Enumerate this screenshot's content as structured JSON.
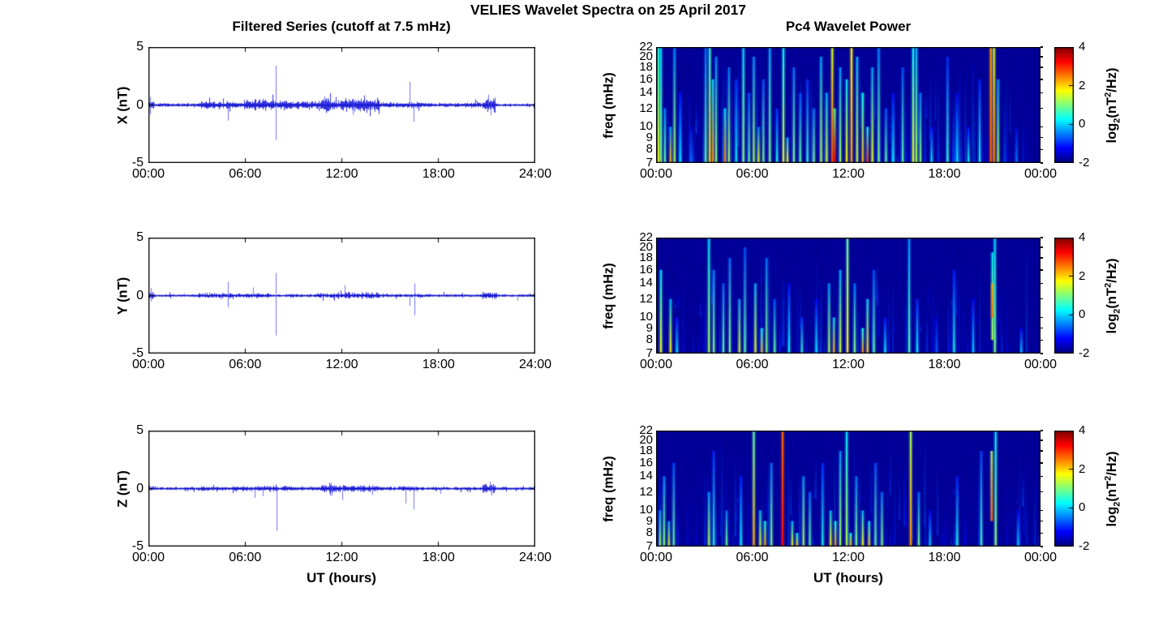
{
  "figure": {
    "title": "VELIES Wavelet Spectra on 25 April 2017",
    "left_title": "Filtered Series (cutoff at 7.5 mHz)",
    "right_title": "Pc4 Wavelet Power",
    "xlabel": "UT (hours)"
  },
  "colors": {
    "series_line": "#0000d8",
    "series_spike": "#5a5aff",
    "heatmap_background": "#000099",
    "axis": "#000000",
    "text": "#000000"
  },
  "colorbar": {
    "min_log2": -2,
    "max_log2": 4,
    "ticks": [
      4,
      2,
      0,
      -2
    ],
    "label_parts": {
      "pre": "log",
      "sub": "2",
      "mid": "(nT",
      "sup": "2",
      "post": "/Hz)"
    }
  },
  "chart_data": [
    {
      "id": "x_series",
      "type": "line",
      "component": "X",
      "ylabel": "X (nT)",
      "ylim": [
        -5,
        5
      ],
      "yticks": [
        5,
        0,
        -5
      ],
      "xticks_hours": [
        0,
        6,
        12,
        18,
        24
      ],
      "xtick_labels": [
        "00:00",
        "06:00",
        "12:00",
        "18:00",
        "24:00"
      ],
      "noise_envelope_nT": [
        [
          0,
          0.35,
          0.3
        ],
        [
          0.35,
          2.8,
          0.1
        ],
        [
          2.8,
          3.1,
          0.14
        ],
        [
          3.1,
          5.1,
          0.22
        ],
        [
          5.1,
          5.9,
          0.16
        ],
        [
          5.9,
          7.7,
          0.32
        ],
        [
          7.7,
          8.5,
          0.26
        ],
        [
          8.5,
          10.7,
          0.24
        ],
        [
          10.7,
          11.5,
          0.45
        ],
        [
          11.5,
          11.9,
          0.28
        ],
        [
          11.9,
          14.3,
          0.42
        ],
        [
          14.3,
          15.7,
          0.16
        ],
        [
          15.7,
          16.8,
          0.22
        ],
        [
          16.8,
          20.7,
          0.13
        ],
        [
          20.7,
          21.5,
          0.4
        ],
        [
          21.5,
          24,
          0.09
        ]
      ],
      "spikes_nT": [
        [
          7.9,
          3.4
        ],
        [
          7.9,
          -3.0
        ],
        [
          4.95,
          -1.35
        ],
        [
          16.2,
          2.0
        ],
        [
          16.45,
          -1.45
        ],
        [
          0.1,
          0.7
        ],
        [
          0.1,
          -0.8
        ],
        [
          10.9,
          0.75
        ],
        [
          12.7,
          -0.85
        ],
        [
          21.1,
          0.9
        ],
        [
          21.25,
          -0.9
        ]
      ]
    },
    {
      "id": "x_wavelet",
      "type": "heatmap",
      "component": "X",
      "ylabel": "freq (mHz)",
      "yscale": "log",
      "freq_range_mHz": [
        7,
        22
      ],
      "yticks": [
        22,
        20,
        18,
        16,
        14,
        12,
        10,
        9,
        8,
        7
      ],
      "xticks_hours": [
        0,
        6,
        12,
        18,
        24
      ],
      "xtick_labels": [
        "00:00",
        "06:00",
        "12:00",
        "18:00",
        "00:00"
      ],
      "clim_log2": [
        -2,
        4
      ],
      "texture": {
        "count": 170,
        "power_min": -1.7,
        "power_max": -0.5
      },
      "streaks": [
        [
          0.15,
          1.8,
          22,
          0.4
        ],
        [
          0.3,
          1.0,
          22,
          0.0
        ],
        [
          0.55,
          0.8,
          12,
          -0.5
        ],
        [
          0.9,
          2.2,
          10,
          -0.3
        ],
        [
          1.15,
          1.2,
          22,
          -0.5
        ],
        [
          1.5,
          0.2,
          14,
          -1.2
        ],
        [
          2.2,
          -0.5,
          10,
          -1.5
        ],
        [
          3.1,
          0.8,
          22,
          -0.6
        ],
        [
          3.35,
          2.0,
          22,
          0.4
        ],
        [
          3.55,
          2.4,
          16,
          0.0
        ],
        [
          3.75,
          1.0,
          20,
          -0.5
        ],
        [
          4.3,
          2.5,
          12,
          0.0
        ],
        [
          4.55,
          1.2,
          18,
          -0.6
        ],
        [
          5.0,
          0.3,
          16,
          -1.0
        ],
        [
          5.45,
          1.1,
          22,
          0.0
        ],
        [
          5.8,
          0.8,
          14,
          -0.8
        ],
        [
          6.1,
          1.2,
          20,
          -0.4
        ],
        [
          6.4,
          1.6,
          10,
          -0.5
        ],
        [
          6.7,
          0.9,
          16,
          -0.8
        ],
        [
          7.1,
          1.0,
          22,
          -0.3
        ],
        [
          7.55,
          0.4,
          12,
          -1.0
        ],
        [
          7.95,
          1.5,
          22,
          0.2
        ],
        [
          8.2,
          1.8,
          9,
          -0.2
        ],
        [
          8.6,
          1.0,
          18,
          -0.6
        ],
        [
          9.0,
          0.8,
          14,
          -0.8
        ],
        [
          9.45,
          0.5,
          16,
          -1.0
        ],
        [
          9.85,
          1.0,
          12,
          -0.6
        ],
        [
          10.3,
          1.3,
          20,
          -0.3
        ],
        [
          10.65,
          1.5,
          14,
          -0.2
        ],
        [
          11.0,
          2.8,
          22,
          1.5
        ],
        [
          11.15,
          3.3,
          12,
          0.8
        ],
        [
          11.5,
          1.2,
          18,
          -0.4
        ],
        [
          11.9,
          1.8,
          16,
          0.0
        ],
        [
          12.2,
          2.3,
          22,
          1.8
        ],
        [
          12.55,
          1.4,
          20,
          -0.2
        ],
        [
          12.9,
          2.2,
          14,
          0.3
        ],
        [
          13.2,
          2.9,
          10,
          0.3
        ],
        [
          13.5,
          1.6,
          18,
          -0.3
        ],
        [
          13.9,
          1.0,
          22,
          -0.5
        ],
        [
          14.35,
          0.8,
          12,
          -0.8
        ],
        [
          14.8,
          0.3,
          14,
          -1.2
        ],
        [
          15.4,
          0.8,
          18,
          -0.8
        ],
        [
          16.05,
          1.6,
          22,
          0.2
        ],
        [
          16.25,
          1.2,
          22,
          -0.2
        ],
        [
          16.5,
          1.0,
          14,
          -0.6
        ],
        [
          17.2,
          0.2,
          10,
          -1.2
        ],
        [
          18.2,
          0.5,
          20,
          -1.0
        ],
        [
          18.8,
          0.2,
          14,
          -1.3
        ],
        [
          19.5,
          0.3,
          10,
          -1.2
        ],
        [
          20.2,
          0.3,
          16,
          -1.1
        ],
        [
          20.9,
          2.7,
          22,
          2.3
        ],
        [
          21.1,
          2.5,
          22,
          1.4
        ],
        [
          21.35,
          1.2,
          16,
          -0.4
        ],
        [
          22.5,
          -0.5,
          10,
          -1.5
        ]
      ]
    },
    {
      "id": "y_series",
      "type": "line",
      "component": "Y",
      "ylabel": "Y (nT)",
      "ylim": [
        -5,
        5
      ],
      "yticks": [
        5,
        0,
        -5
      ],
      "xticks_hours": [
        0,
        6,
        12,
        18,
        24
      ],
      "xtick_labels": [
        "00:00",
        "06:00",
        "12:00",
        "18:00",
        "24:00"
      ],
      "noise_envelope_nT": [
        [
          0,
          0.4,
          0.22
        ],
        [
          0.4,
          3.1,
          0.08
        ],
        [
          3.1,
          5.2,
          0.16
        ],
        [
          5.2,
          7.6,
          0.14
        ],
        [
          7.6,
          10.4,
          0.09
        ],
        [
          10.4,
          11.4,
          0.14
        ],
        [
          11.4,
          14.2,
          0.18
        ],
        [
          14.2,
          16.8,
          0.1
        ],
        [
          16.8,
          20.7,
          0.09
        ],
        [
          20.7,
          21.6,
          0.2
        ],
        [
          21.6,
          24,
          0.08
        ]
      ],
      "spikes_nT": [
        [
          7.9,
          1.95
        ],
        [
          7.9,
          -3.45
        ],
        [
          4.95,
          1.2
        ],
        [
          4.95,
          -1.0
        ],
        [
          6.5,
          0.7
        ],
        [
          12.2,
          0.9
        ],
        [
          16.2,
          -0.9
        ],
        [
          16.5,
          -1.7
        ],
        [
          16.5,
          1.05
        ],
        [
          0.15,
          0.65
        ],
        [
          0.15,
          -0.5
        ],
        [
          22.9,
          -0.45
        ]
      ]
    },
    {
      "id": "y_wavelet",
      "type": "heatmap",
      "component": "Y",
      "ylabel": "freq (mHz)",
      "yscale": "log",
      "freq_range_mHz": [
        7,
        22
      ],
      "yticks": [
        22,
        20,
        18,
        16,
        14,
        12,
        10,
        9,
        8,
        7
      ],
      "xticks_hours": [
        0,
        6,
        12,
        18,
        24
      ],
      "xtick_labels": [
        "00:00",
        "06:00",
        "12:00",
        "18:00",
        "00:00"
      ],
      "clim_log2": [
        -2,
        4
      ],
      "texture": {
        "count": 120,
        "power_min": -1.7,
        "power_max": -0.6
      },
      "streaks": [
        [
          0.3,
          1.6,
          16,
          0.0
        ],
        [
          0.9,
          1.8,
          12,
          -0.2
        ],
        [
          1.3,
          0.2,
          10,
          -1.2
        ],
        [
          3.3,
          1.2,
          22,
          0.0
        ],
        [
          3.6,
          1.0,
          16,
          -0.5
        ],
        [
          4.2,
          0.8,
          14,
          -0.7
        ],
        [
          4.6,
          1.0,
          18,
          -0.6
        ],
        [
          5.2,
          1.5,
          12,
          -0.3
        ],
        [
          5.55,
          0.8,
          20,
          -0.8
        ],
        [
          6.2,
          1.6,
          14,
          -0.2
        ],
        [
          6.6,
          2.2,
          9,
          0.2
        ],
        [
          6.9,
          1.0,
          18,
          -0.6
        ],
        [
          7.4,
          0.8,
          12,
          -0.8
        ],
        [
          8.3,
          0.3,
          14,
          -1.2
        ],
        [
          9.1,
          0.5,
          10,
          -1.0
        ],
        [
          10.0,
          0.2,
          12,
          -1.3
        ],
        [
          10.8,
          1.2,
          14,
          -0.4
        ],
        [
          11.1,
          2.2,
          10,
          0.0
        ],
        [
          11.5,
          1.5,
          16,
          -0.3
        ],
        [
          11.95,
          1.8,
          22,
          0.8
        ],
        [
          12.4,
          1.0,
          14,
          -0.6
        ],
        [
          12.9,
          2.4,
          9,
          0.3
        ],
        [
          13.2,
          2.0,
          12,
          0.0
        ],
        [
          13.6,
          0.8,
          16,
          -0.8
        ],
        [
          14.3,
          0.3,
          10,
          -1.2
        ],
        [
          15.8,
          0.7,
          22,
          -0.4
        ],
        [
          16.3,
          0.3,
          12,
          -1.1
        ],
        [
          17.5,
          -0.7,
          10,
          -1.5
        ],
        [
          18.6,
          0.3,
          16,
          -1.1
        ],
        [
          19.8,
          0.0,
          12,
          -1.3
        ],
        [
          21.0,
          1.3,
          19,
          0.1,
          8
        ],
        [
          21.0,
          2.6,
          14,
          2.2,
          10
        ],
        [
          21.15,
          1.0,
          22,
          0.0
        ],
        [
          22.8,
          0.0,
          9,
          -1.3
        ]
      ]
    },
    {
      "id": "z_series",
      "type": "line",
      "component": "Z",
      "ylabel": "Z (nT)",
      "ylim": [
        -5,
        5
      ],
      "yticks": [
        5,
        0,
        -5
      ],
      "xticks_hours": [
        0,
        6,
        12,
        18,
        24
      ],
      "xtick_labels": [
        "00:00",
        "06:00",
        "12:00",
        "18:00",
        "24:00"
      ],
      "noise_envelope_nT": [
        [
          0,
          0.4,
          0.18
        ],
        [
          0.4,
          3.1,
          0.09
        ],
        [
          3.1,
          5.3,
          0.13
        ],
        [
          5.3,
          7.9,
          0.16
        ],
        [
          7.9,
          10.7,
          0.13
        ],
        [
          10.7,
          11.6,
          0.24
        ],
        [
          11.6,
          14.3,
          0.2
        ],
        [
          14.3,
          15.7,
          0.11
        ],
        [
          15.7,
          16.8,
          0.14
        ],
        [
          16.8,
          20.7,
          0.1
        ],
        [
          20.7,
          21.5,
          0.26
        ],
        [
          21.5,
          24,
          0.09
        ]
      ],
      "spikes_nT": [
        [
          7.95,
          -3.65
        ],
        [
          6.6,
          -0.8
        ],
        [
          7.1,
          -0.65
        ],
        [
          12.0,
          -1.0
        ],
        [
          15.95,
          -1.3
        ],
        [
          16.45,
          -1.8
        ],
        [
          11.3,
          0.5
        ],
        [
          11.35,
          -0.6
        ],
        [
          13.9,
          -0.55
        ],
        [
          18.1,
          -0.45
        ],
        [
          21.2,
          0.6
        ],
        [
          21.3,
          -0.6
        ]
      ]
    },
    {
      "id": "z_wavelet",
      "type": "heatmap",
      "component": "Z",
      "ylabel": "freq (mHz)",
      "yscale": "log",
      "freq_range_mHz": [
        7,
        22
      ],
      "yticks": [
        22,
        20,
        18,
        16,
        14,
        12,
        10,
        9,
        8,
        7
      ],
      "xticks_hours": [
        0,
        6,
        12,
        18,
        24
      ],
      "xtick_labels": [
        "00:00",
        "06:00",
        "12:00",
        "18:00",
        "00:00"
      ],
      "clim_log2": [
        -2,
        4
      ],
      "texture": {
        "count": 140,
        "power_min": -1.7,
        "power_max": -0.6
      },
      "streaks": [
        [
          0.25,
          1.2,
          10,
          -0.4
        ],
        [
          0.5,
          1.0,
          14,
          -0.5
        ],
        [
          0.8,
          1.5,
          9,
          -0.3
        ],
        [
          1.1,
          0.8,
          16,
          -0.8
        ],
        [
          3.3,
          1.3,
          12,
          -0.4
        ],
        [
          3.6,
          0.4,
          18,
          -1.0
        ],
        [
          4.4,
          0.9,
          10,
          -0.6
        ],
        [
          5.3,
          0.3,
          14,
          -1.1
        ],
        [
          6.1,
          2.2,
          22,
          0.8
        ],
        [
          6.5,
          1.6,
          10,
          -0.2
        ],
        [
          6.8,
          2.3,
          9,
          0.3
        ],
        [
          7.2,
          1.0,
          16,
          -0.6
        ],
        [
          7.9,
          3.2,
          22,
          2.6
        ],
        [
          8.5,
          1.6,
          9,
          -0.2
        ],
        [
          8.8,
          2.0,
          8,
          0.2
        ],
        [
          9.2,
          1.2,
          14,
          -0.4
        ],
        [
          9.6,
          0.8,
          12,
          -0.7
        ],
        [
          10.4,
          0.4,
          16,
          -1.0
        ],
        [
          10.9,
          1.8,
          10,
          -0.1
        ],
        [
          11.2,
          2.4,
          9,
          0.3
        ],
        [
          11.5,
          1.2,
          18,
          -0.4
        ],
        [
          11.9,
          1.3,
          22,
          0.1
        ],
        [
          12.15,
          2.2,
          8,
          0.4
        ],
        [
          12.5,
          1.0,
          14,
          -0.6
        ],
        [
          12.9,
          1.7,
          10,
          -0.2
        ],
        [
          13.3,
          2.0,
          9,
          0.1
        ],
        [
          13.7,
          0.8,
          16,
          -0.8
        ],
        [
          14.1,
          1.0,
          12,
          -0.6
        ],
        [
          15.9,
          2.4,
          22,
          1.2
        ],
        [
          16.4,
          0.9,
          12,
          -0.7
        ],
        [
          17.1,
          0.0,
          10,
          -1.3
        ],
        [
          18.8,
          0.4,
          14,
          -1.1
        ],
        [
          20.3,
          0.6,
          18,
          -0.9
        ],
        [
          20.95,
          2.6,
          18,
          1.2,
          9
        ],
        [
          21.2,
          1.1,
          22,
          0.1
        ],
        [
          22.6,
          0.0,
          10,
          -1.3
        ]
      ]
    }
  ]
}
